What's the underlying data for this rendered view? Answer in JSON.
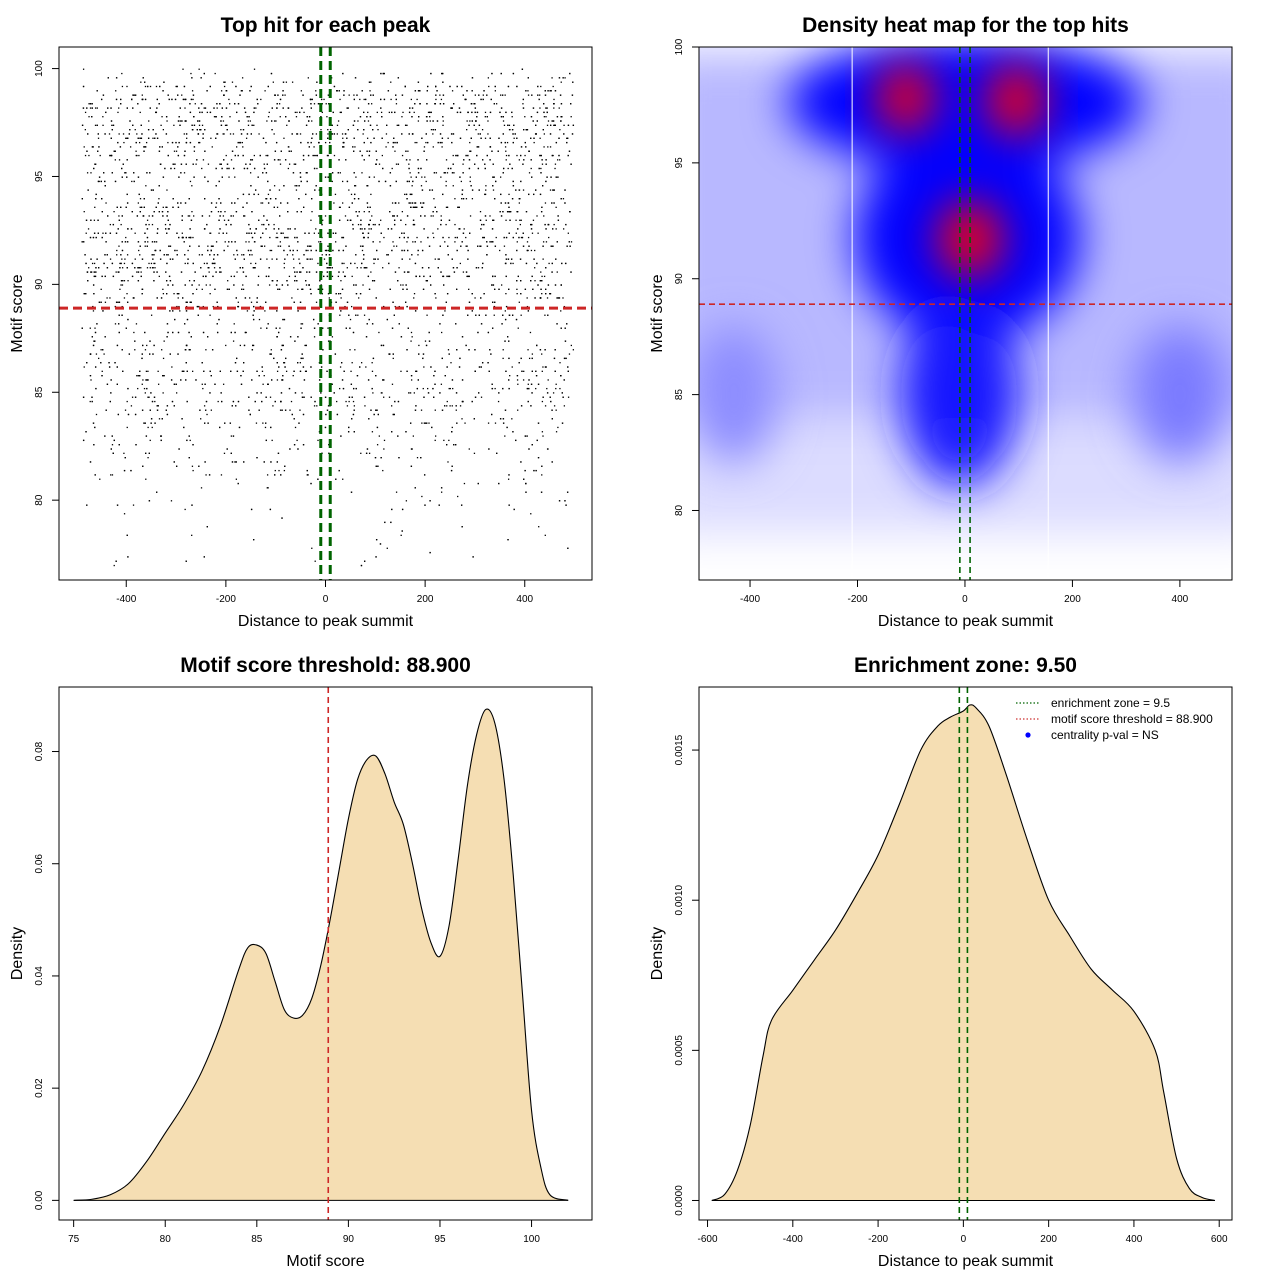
{
  "chart_data": [
    {
      "type": "scatter",
      "title": "Top hit for each peak",
      "xlabel": "Distance to peak summit",
      "ylabel": "Motif score",
      "xlim": [
        -535,
        535
      ],
      "ylim": [
        76.3,
        101
      ],
      "xticks": [
        -400,
        -200,
        0,
        200,
        400
      ],
      "yticks": [
        80,
        85,
        90,
        95,
        100
      ],
      "points_x_range": [
        -490,
        497
      ],
      "score_density": {
        "x": [
          78,
          80,
          82,
          84,
          85,
          86,
          87,
          88,
          89,
          90,
          91,
          92,
          93,
          94,
          95,
          96,
          97,
          98,
          99,
          100
        ],
        "y": [
          0.003,
          0.008,
          0.018,
          0.035,
          0.045,
          0.04,
          0.033,
          0.031,
          0.038,
          0.062,
          0.077,
          0.079,
          0.068,
          0.052,
          0.044,
          0.06,
          0.085,
          0.087,
          0.06,
          0.01
        ]
      },
      "vlines": [
        -9.5,
        9.5
      ],
      "hlines": [
        88.9
      ],
      "grid": false,
      "legend": null
    },
    {
      "type": "heatmap",
      "title": "Density heat map for the top hits",
      "xlabel": "Distance to peak summit",
      "ylabel": "Motif score",
      "xlim": [
        -495,
        497
      ],
      "ylim": [
        77,
        100
      ],
      "xticks": [
        -400,
        -200,
        0,
        200,
        400
      ],
      "yticks": [
        80,
        85,
        90,
        95,
        100
      ],
      "colorscale": [
        "#ffffff",
        "#0000ff",
        "#ff0000"
      ],
      "hotspots": [
        {
          "x": -110,
          "y": 97.8,
          "intensity": 0.85
        },
        {
          "x": 95,
          "y": 97.7,
          "intensity": 0.88
        },
        {
          "x": 10,
          "y": 91.7,
          "intensity": 0.95
        },
        {
          "x": 0,
          "y": 85.0,
          "intensity": 0.45
        },
        {
          "x": 400,
          "y": 85.0,
          "intensity": 0.25
        },
        {
          "x": -430,
          "y": 85.0,
          "intensity": 0.2
        }
      ],
      "vlines": [
        -9.5,
        9.5
      ],
      "hlines": [
        88.9
      ],
      "white_vlines": [
        -210,
        155
      ],
      "grid": false,
      "legend": null
    },
    {
      "type": "area",
      "title": "Motif score threshold: 88.900",
      "xlabel": "Motif score",
      "ylabel": "Density",
      "xlim": [
        74.2,
        103.3
      ],
      "ylim": [
        -0.0035,
        0.0915
      ],
      "xticks": [
        75,
        80,
        85,
        90,
        95,
        100
      ],
      "yticks": [
        0.0,
        0.02,
        0.04,
        0.06,
        0.08
      ],
      "ytick_labels": [
        "0.00",
        "0.02",
        "0.04",
        "0.06",
        "0.08"
      ],
      "x": [
        75,
        76,
        77,
        78,
        79,
        80,
        81,
        82,
        83,
        84,
        84.5,
        85,
        85.5,
        86,
        86.5,
        87,
        87.5,
        88,
        88.5,
        89,
        89.5,
        90,
        90.5,
        91,
        91.5,
        92,
        92.5,
        93,
        93.5,
        94,
        94.5,
        95,
        95.5,
        96,
        96.5,
        97,
        97.5,
        98,
        98.5,
        99,
        99.5,
        100,
        100.5,
        101,
        102
      ],
      "y": [
        0.0,
        0.0002,
        0.001,
        0.003,
        0.007,
        0.012,
        0.017,
        0.023,
        0.031,
        0.041,
        0.045,
        0.0455,
        0.044,
        0.039,
        0.034,
        0.0325,
        0.033,
        0.036,
        0.042,
        0.05,
        0.059,
        0.068,
        0.075,
        0.0785,
        0.0792,
        0.076,
        0.071,
        0.067,
        0.06,
        0.052,
        0.046,
        0.0435,
        0.049,
        0.061,
        0.074,
        0.083,
        0.0875,
        0.085,
        0.075,
        0.058,
        0.037,
        0.016,
        0.006,
        0.001,
        0.0
      ],
      "vlines": [
        88.9
      ],
      "grid": false,
      "legend": null
    },
    {
      "type": "area",
      "title": "Enrichment zone: 9.50",
      "xlabel": "Distance to peak summit",
      "ylabel": "Density",
      "xlim": [
        -620,
        630
      ],
      "ylim": [
        -6.5e-05,
        0.00171
      ],
      "xticks": [
        -600,
        -400,
        -200,
        0,
        200,
        400,
        600
      ],
      "yticks": [
        0.0,
        0.0005,
        0.001,
        0.0015
      ],
      "ytick_labels": [
        "0.0000",
        "0.0005",
        "0.0010",
        "0.0015"
      ],
      "x": [
        -590,
        -560,
        -530,
        -500,
        -470,
        -450,
        -400,
        -350,
        -300,
        -250,
        -200,
        -150,
        -100,
        -60,
        -30,
        0,
        15,
        30,
        60,
        100,
        150,
        200,
        250,
        300,
        350,
        400,
        450,
        470,
        500,
        530,
        560,
        590
      ],
      "y": [
        0.0,
        2e-05,
        0.0001,
        0.00025,
        0.00048,
        0.0006,
        0.0007,
        0.0008,
        0.0009,
        0.00102,
        0.00115,
        0.00132,
        0.0015,
        0.00158,
        0.00161,
        0.00163,
        0.00165,
        0.00164,
        0.00158,
        0.00142,
        0.0012,
        0.001,
        0.00088,
        0.00077,
        0.0007,
        0.00063,
        0.0005,
        0.00036,
        0.00014,
        4e-05,
        1e-05,
        0.0
      ],
      "vlines": [
        -9.5,
        9.5
      ],
      "legend_position": "top-right",
      "legend": [
        {
          "label": "enrichment zone = 9.5",
          "color": "#006400",
          "style": "dotted-line"
        },
        {
          "label": "motif score threshold = 88.900",
          "color": "#cd3333",
          "style": "dotted-line"
        },
        {
          "label": "centrality p-val = NS",
          "color": "#0000ff",
          "style": "point"
        }
      ],
      "grid": false
    }
  ],
  "colors": {
    "fill": "#f5deb3",
    "threshold_line": "#cd2626",
    "zone_line": "#006400",
    "points": "#000000",
    "legend_point": "#0000ff"
  }
}
